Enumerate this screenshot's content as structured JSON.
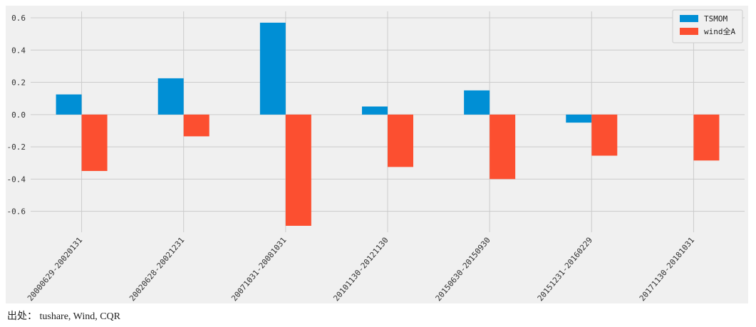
{
  "chart_data": {
    "type": "bar",
    "categories": [
      "20000629-20020131",
      "20020628-20021231",
      "20071031-20081031",
      "20101130-20121130",
      "20150630-20150930",
      "20151231-20160229",
      "20171130-20181031"
    ],
    "series": [
      {
        "name": "TSMOM",
        "color": "#008fd5",
        "values": [
          0.125,
          0.225,
          0.57,
          0.05,
          0.15,
          -0.05,
          0.0
        ]
      },
      {
        "name": "wind全A",
        "color": "#fc4f30",
        "values": [
          -0.35,
          -0.135,
          -0.69,
          -0.325,
          -0.4,
          -0.255,
          -0.285
        ]
      }
    ],
    "ylim": [
      -0.73,
      0.64
    ],
    "yticks": [
      -0.6,
      -0.4,
      -0.2,
      0.0,
      0.2,
      0.4,
      0.6
    ],
    "ytick_labels": [
      "-0.6",
      "-0.4",
      "-0.2",
      "0.0",
      "0.2",
      "0.4",
      "0.6"
    ],
    "grid": true,
    "legend_position": "top-right",
    "background": "#f0f0f0"
  },
  "footer": {
    "source": "出处： tushare, Wind, CQR"
  }
}
